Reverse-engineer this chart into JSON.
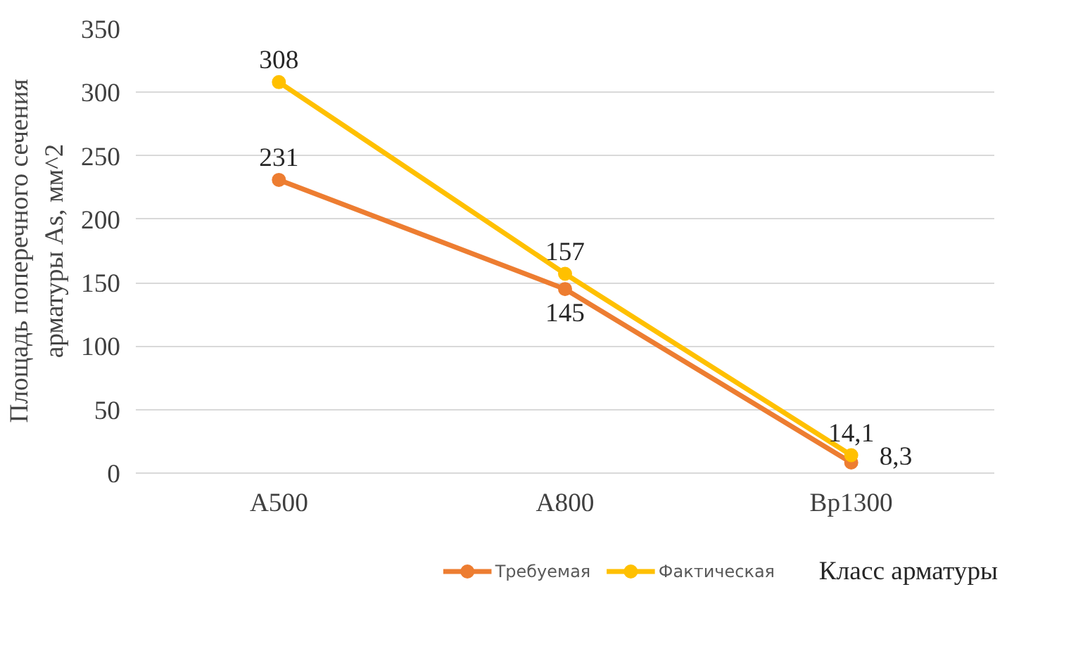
{
  "chart_data": {
    "type": "line",
    "xlabel": "Класс арматуры",
    "ylabel": "Площадь поперечного сечения\nарматуры As, мм^2",
    "categories": [
      "A500",
      "A800",
      "Bp1300"
    ],
    "series": [
      {
        "name": "Требуемая",
        "color": "#ed7d31",
        "values": [
          231,
          145,
          8.3
        ],
        "value_labels": [
          "231",
          "145",
          "8,3"
        ]
      },
      {
        "name": "Фактическая",
        "color": "#ffc000",
        "values": [
          308,
          157,
          14.1
        ],
        "value_labels": [
          "308",
          "157",
          "14,1"
        ]
      }
    ],
    "ylim": [
      0,
      350
    ],
    "yticks": [
      0,
      50,
      100,
      150,
      200,
      250,
      300,
      350
    ],
    "grid": "y",
    "legend": "bottom",
    "marker": "circle",
    "line_style": "solid"
  }
}
